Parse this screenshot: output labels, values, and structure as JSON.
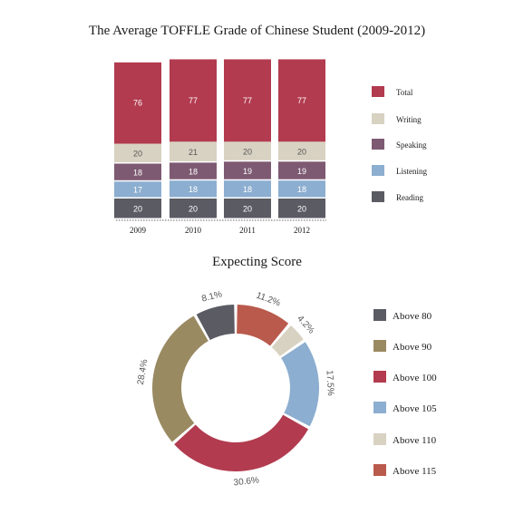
{
  "chart_data": [
    {
      "type": "bar",
      "stacked": true,
      "title": "The Average TOFFLE Grade of Chinese Student (2009-2012)",
      "categories": [
        "2009",
        "2010",
        "2011",
        "2012"
      ],
      "series": [
        {
          "name": "Reading",
          "color": "#5a5b63",
          "values": [
            20,
            20,
            20,
            20
          ]
        },
        {
          "name": "Listening",
          "color": "#8caed0",
          "values": [
            17,
            18,
            18,
            18
          ]
        },
        {
          "name": "Speaking",
          "color": "#7d5a72",
          "values": [
            18,
            18,
            19,
            19
          ]
        },
        {
          "name": "Writing",
          "color": "#d8d2c2",
          "values": [
            20,
            21,
            20,
            20
          ]
        },
        {
          "name": "Total",
          "color": "#b23b4f",
          "values": [
            76,
            77,
            77,
            77
          ]
        }
      ],
      "legend_order": [
        "Total",
        "Writing",
        "Speaking",
        "Listening",
        "Reading"
      ],
      "legend_position": "right",
      "grid": false
    },
    {
      "type": "pie",
      "donut": true,
      "title": "Expecting Score",
      "slices": [
        {
          "label": "Above 80",
          "value": 8.1,
          "value_label": "8.1%",
          "color": "#5a5b63"
        },
        {
          "label": "Above 90",
          "value": 28.4,
          "value_label": "28.4%",
          "color": "#9a8a62"
        },
        {
          "label": "Above 100",
          "value": 30.6,
          "value_label": "30.6%",
          "color": "#b23b4f"
        },
        {
          "label": "Above 105",
          "value": 17.5,
          "value_label": "17.5%",
          "color": "#8caed0"
        },
        {
          "label": "Above 110",
          "value": 4.2,
          "value_label": "4.2%",
          "color": "#d8d2c2"
        },
        {
          "label": "Above 115",
          "value": 11.2,
          "value_label": "11.2%",
          "color": "#b95a4c"
        }
      ],
      "clockwise_order_from_top": [
        "Above 115",
        "Above 110",
        "Above 105",
        "Above 100",
        "Above 90",
        "Above 80"
      ],
      "legend_position": "right"
    }
  ]
}
